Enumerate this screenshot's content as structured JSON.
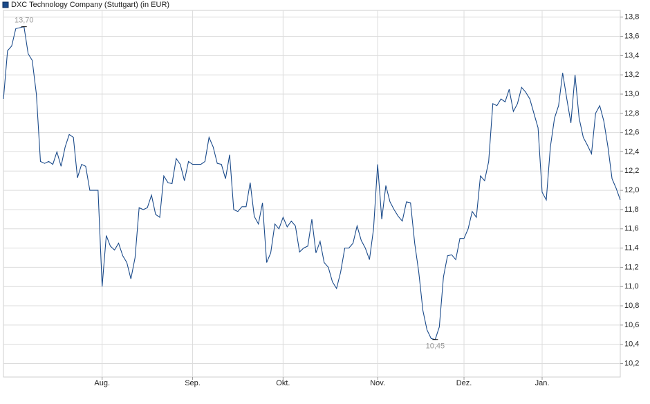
{
  "chart_data": {
    "type": "line",
    "title": "DXC Technology Company (Stuttgart) (in EUR)",
    "series": [
      {
        "name": "DXC Technology Company (Stuttgart) (in EUR)",
        "color": "#1a4a8a",
        "values": [
          12.95,
          13.45,
          13.5,
          13.68,
          13.69,
          13.7,
          13.42,
          13.35,
          13.0,
          12.3,
          12.28,
          12.3,
          12.27,
          12.4,
          12.25,
          12.45,
          12.58,
          12.55,
          12.13,
          12.27,
          12.25,
          12.0,
          12.0,
          12.0,
          11.0,
          11.53,
          11.42,
          11.38,
          11.45,
          11.32,
          11.25,
          11.08,
          11.3,
          11.82,
          11.8,
          11.82,
          11.95,
          11.75,
          11.72,
          12.15,
          12.08,
          12.07,
          12.33,
          12.27,
          12.1,
          12.3,
          12.27,
          12.27,
          12.27,
          12.3,
          12.55,
          12.45,
          12.28,
          12.27,
          12.12,
          12.37,
          11.8,
          11.78,
          11.83,
          11.83,
          12.08,
          11.73,
          11.65,
          11.87,
          11.25,
          11.35,
          11.65,
          11.6,
          11.72,
          11.62,
          11.68,
          11.63,
          11.36,
          11.4,
          11.42,
          11.7,
          11.35,
          11.47,
          11.25,
          11.2,
          11.05,
          10.98,
          11.15,
          11.4,
          11.4,
          11.45,
          11.63,
          11.48,
          11.4,
          11.28,
          11.6,
          12.27,
          11.7,
          12.05,
          11.88,
          11.8,
          11.73,
          11.68,
          11.88,
          11.87,
          11.45,
          11.15,
          10.75,
          10.55,
          10.46,
          10.45,
          10.58,
          11.1,
          11.32,
          11.33,
          11.28,
          11.5,
          11.5,
          11.6,
          11.78,
          11.72,
          12.15,
          12.1,
          12.3,
          12.9,
          12.88,
          12.95,
          12.92,
          13.05,
          12.82,
          12.9,
          13.07,
          13.02,
          12.95,
          12.8,
          12.65,
          11.98,
          11.9,
          12.45,
          12.75,
          12.88,
          13.22,
          12.95,
          12.7,
          13.2,
          12.75,
          12.55,
          12.47,
          12.38,
          12.8,
          12.88,
          12.72,
          12.45,
          12.12,
          12.02,
          11.9
        ]
      }
    ],
    "xlim": [
      0,
      150
    ],
    "xticks": [
      {
        "value": 24,
        "label": "Aug."
      },
      {
        "value": 46,
        "label": "Sep."
      },
      {
        "value": 68,
        "label": "Okt."
      },
      {
        "value": 91,
        "label": "Nov."
      },
      {
        "value": 112,
        "label": "Dez."
      },
      {
        "value": 131,
        "label": "Jan."
      }
    ],
    "ylim": [
      10.06,
      13.87
    ],
    "yticks": [
      {
        "value": 10.2,
        "label": "10,2"
      },
      {
        "value": 10.4,
        "label": "10,4"
      },
      {
        "value": 10.6,
        "label": "10,6"
      },
      {
        "value": 10.8,
        "label": "10,8"
      },
      {
        "value": 11.0,
        "label": "11,0"
      },
      {
        "value": 11.2,
        "label": "11,2"
      },
      {
        "value": 11.4,
        "label": "11,4"
      },
      {
        "value": 11.6,
        "label": "11,6"
      },
      {
        "value": 11.8,
        "label": "11,8"
      },
      {
        "value": 12.0,
        "label": "12,0"
      },
      {
        "value": 12.2,
        "label": "12,2"
      },
      {
        "value": 12.4,
        "label": "12,4"
      },
      {
        "value": 12.6,
        "label": "12,6"
      },
      {
        "value": 12.8,
        "label": "12,8"
      },
      {
        "value": 13.0,
        "label": "13,0"
      },
      {
        "value": 13.2,
        "label": "13,2"
      },
      {
        "value": 13.4,
        "label": "13,4"
      },
      {
        "value": 13.6,
        "label": "13,6"
      },
      {
        "value": 13.8,
        "label": "13,8"
      }
    ],
    "grid": true,
    "annotations": [
      {
        "value": 13.7,
        "label": "13,70",
        "position": "above"
      },
      {
        "value": 10.45,
        "label": "10,45",
        "position": "below"
      }
    ]
  }
}
